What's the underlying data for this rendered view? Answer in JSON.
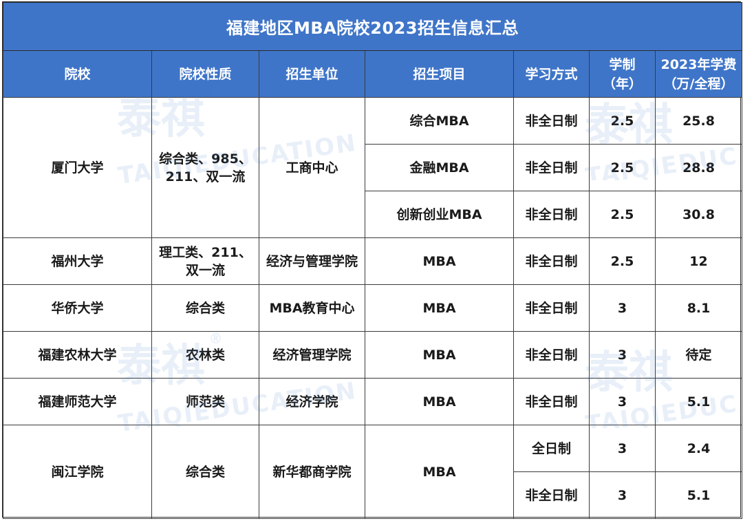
{
  "title": "福建地区MBA院校2023招生信息汇总",
  "columns": [
    "院校",
    "院校性质",
    "招生单位",
    "招生项目",
    "学习方式",
    "学制\n（年）",
    "2023年学费\n（万/全程）"
  ],
  "watermark": {
    "brand": "泰祺",
    "text": "TAIQIEDUCATION",
    "reg": "®"
  },
  "schools": [
    {
      "name": "厦门大学",
      "nature": "综合类、985、\n211、双一流",
      "unit": "工商中心",
      "programs": [
        {
          "project": "综合MBA",
          "mode": "非全日制",
          "years": "2.5",
          "fee": "25.8"
        },
        {
          "project": "金融MBA",
          "mode": "非全日制",
          "years": "2.5",
          "fee": "28.8"
        },
        {
          "project": "创新创业MBA",
          "mode": "非全日制",
          "years": "2.5",
          "fee": "30.8"
        }
      ]
    },
    {
      "name": "福州大学",
      "nature": "理工类、211、\n双一流",
      "unit": "经济与管理学院",
      "programs": [
        {
          "project": "MBA",
          "mode": "非全日制",
          "years": "2.5",
          "fee": "12"
        }
      ]
    },
    {
      "name": "华侨大学",
      "nature": "综合类",
      "unit": "MBA教育中心",
      "programs": [
        {
          "project": "MBA",
          "mode": "非全日制",
          "years": "3",
          "fee": "8.1"
        }
      ]
    },
    {
      "name": "福建农林大学",
      "nature": "农林类",
      "unit": "经济管理学院",
      "programs": [
        {
          "project": "MBA",
          "mode": "非全日制",
          "years": "3",
          "fee": "待定"
        }
      ]
    },
    {
      "name": "福建师范大学",
      "nature": "师范类",
      "unit": "经济学院",
      "programs": [
        {
          "project": "MBA",
          "mode": "非全日制",
          "years": "3",
          "fee": "5.1"
        }
      ]
    },
    {
      "name": "闽江学院",
      "nature": "综合类",
      "unit": "新华都商学院",
      "project": "MBA",
      "programs": [
        {
          "mode": "全日制",
          "years": "3",
          "fee": "2.4"
        },
        {
          "mode": "非全日制",
          "years": "3",
          "fee": "5.1"
        }
      ]
    }
  ]
}
